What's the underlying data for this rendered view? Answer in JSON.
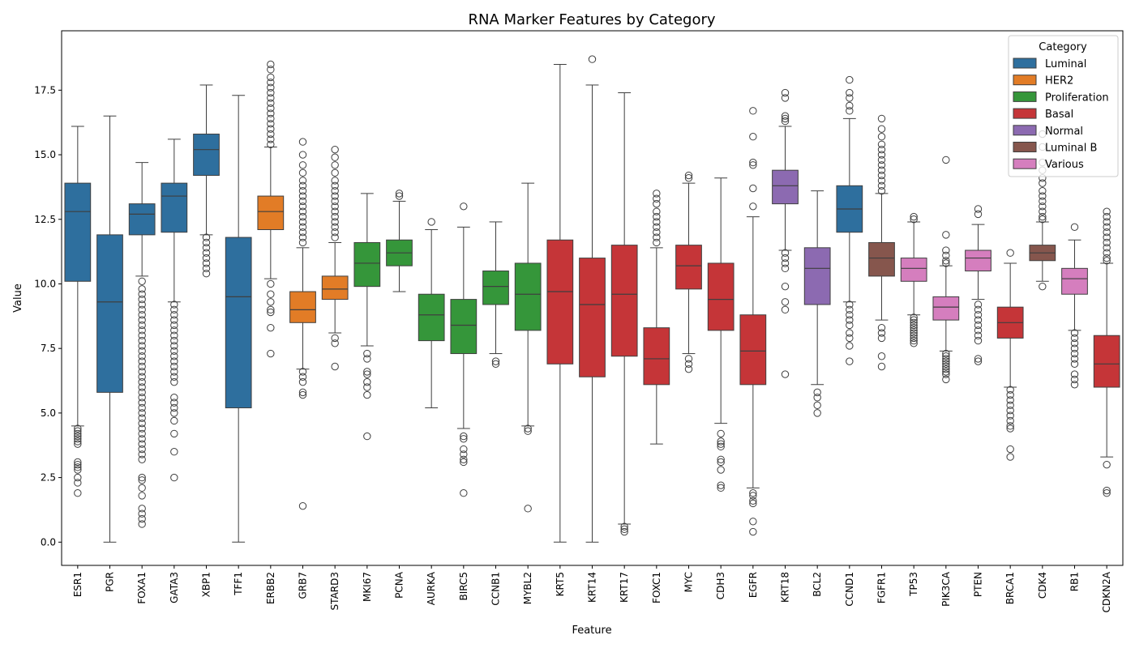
{
  "chart_data": {
    "type": "box",
    "title": "RNA Marker Features by Category",
    "xlabel": "Feature",
    "ylabel": "Value",
    "ylim": [
      -0.9,
      19.8
    ],
    "yticks": [
      "0.0",
      "2.5",
      "5.0",
      "7.5",
      "10.0",
      "12.5",
      "15.0",
      "17.5"
    ],
    "legend": {
      "title": "Category",
      "position": "top-right",
      "entries": [
        {
          "name": "Luminal",
          "color": "#2e6f9e"
        },
        {
          "name": "HER2",
          "color": "#e27c26"
        },
        {
          "name": "Proliferation",
          "color": "#35963a"
        },
        {
          "name": "Basal",
          "color": "#c53538"
        },
        {
          "name": "Normal",
          "color": "#8c6ab1"
        },
        {
          "name": "Luminal B",
          "color": "#86564d"
        },
        {
          "name": "Various",
          "color": "#d57ebe"
        }
      ]
    },
    "boxes": [
      {
        "feature": "ESR1",
        "category": "Luminal",
        "whislo": 4.5,
        "q1": 10.1,
        "med": 12.8,
        "q3": 13.9,
        "whishi": 16.1,
        "fliers": [
          4.4,
          4.3,
          4.2,
          4.1,
          4.0,
          3.9,
          3.8,
          3.1,
          3.0,
          2.9,
          2.8,
          2.5,
          2.3,
          1.9
        ]
      },
      {
        "feature": "PGR",
        "category": "Luminal",
        "whislo": 0.0,
        "q1": 5.8,
        "med": 9.3,
        "q3": 11.9,
        "whishi": 16.5,
        "fliers": []
      },
      {
        "feature": "FOXA1",
        "category": "Luminal",
        "whislo": 10.3,
        "q1": 11.9,
        "med": 12.7,
        "q3": 13.1,
        "whishi": 14.7,
        "fliers": [
          10.1,
          9.8,
          9.6,
          9.4,
          9.2,
          9.0,
          8.8,
          8.6,
          8.4,
          8.2,
          8.0,
          7.8,
          7.6,
          7.4,
          7.2,
          7.0,
          6.8,
          6.6,
          6.4,
          6.2,
          6.0,
          5.8,
          5.6,
          5.4,
          5.2,
          5.0,
          4.8,
          4.6,
          4.4,
          4.2,
          4.0,
          3.8,
          3.6,
          3.4,
          3.2,
          2.5,
          2.4,
          2.1,
          1.8,
          1.3,
          1.1,
          0.9,
          0.7
        ]
      },
      {
        "feature": "GATA3",
        "category": "Luminal",
        "whislo": 9.3,
        "q1": 12.0,
        "med": 13.4,
        "q3": 13.9,
        "whishi": 15.6,
        "fliers": [
          9.2,
          9.0,
          8.8,
          8.6,
          8.4,
          8.2,
          8.0,
          7.8,
          7.6,
          7.4,
          7.2,
          7.0,
          6.8,
          6.6,
          6.4,
          6.2,
          5.6,
          5.4,
          5.2,
          5.0,
          4.7,
          4.2,
          3.5,
          2.5
        ]
      },
      {
        "feature": "XBP1",
        "category": "Luminal",
        "whislo": 11.9,
        "q1": 14.2,
        "med": 15.2,
        "q3": 15.8,
        "whishi": 17.7,
        "fliers": [
          11.8,
          11.6,
          11.4,
          11.2,
          11.0,
          10.8,
          10.6,
          10.4
        ]
      },
      {
        "feature": "TFF1",
        "category": "Luminal",
        "whislo": 0.0,
        "q1": 5.2,
        "med": 9.5,
        "q3": 11.8,
        "whishi": 17.3,
        "fliers": []
      },
      {
        "feature": "ERBB2",
        "category": "HER2",
        "whislo": 10.2,
        "q1": 12.1,
        "med": 12.8,
        "q3": 13.4,
        "whishi": 15.3,
        "fliers": [
          18.5,
          18.3,
          18.0,
          17.8,
          17.6,
          17.4,
          17.2,
          17.0,
          16.8,
          16.6,
          16.4,
          16.2,
          16.0,
          15.8,
          15.6,
          15.4,
          10.0,
          9.6,
          9.3,
          9.0,
          8.9,
          8.3,
          7.3
        ]
      },
      {
        "feature": "GRB7",
        "category": "HER2",
        "whislo": 6.7,
        "q1": 8.5,
        "med": 9.0,
        "q3": 9.7,
        "whishi": 11.4,
        "fliers": [
          15.5,
          15.0,
          14.6,
          14.3,
          14.0,
          13.8,
          13.6,
          13.4,
          13.2,
          13.0,
          12.8,
          12.6,
          12.4,
          12.2,
          12.0,
          11.8,
          11.6,
          6.6,
          6.4,
          6.2,
          5.8,
          5.7,
          1.4
        ]
      },
      {
        "feature": "STARD3",
        "category": "HER2",
        "whislo": 8.1,
        "q1": 9.4,
        "med": 9.8,
        "q3": 10.3,
        "whishi": 11.6,
        "fliers": [
          15.2,
          14.9,
          14.6,
          14.3,
          14.0,
          13.8,
          13.6,
          13.4,
          13.2,
          13.0,
          12.8,
          12.6,
          12.4,
          12.2,
          12.0,
          11.8,
          7.9,
          7.7,
          6.8
        ]
      },
      {
        "feature": "MKI67",
        "category": "Proliferation",
        "whislo": 7.6,
        "q1": 9.9,
        "med": 10.8,
        "q3": 11.6,
        "whishi": 13.5,
        "fliers": [
          7.3,
          7.1,
          6.6,
          6.5,
          6.2,
          6.0,
          5.7,
          4.1
        ]
      },
      {
        "feature": "PCNA",
        "category": "Proliferation",
        "whislo": 9.7,
        "q1": 10.7,
        "med": 11.2,
        "q3": 11.7,
        "whishi": 13.2,
        "fliers": [
          13.5,
          13.4
        ]
      },
      {
        "feature": "AURKA",
        "category": "Proliferation",
        "whislo": 5.2,
        "q1": 7.8,
        "med": 8.8,
        "q3": 9.6,
        "whishi": 12.1,
        "fliers": [
          12.4
        ]
      },
      {
        "feature": "BIRC5",
        "category": "Proliferation",
        "whislo": 4.4,
        "q1": 7.3,
        "med": 8.4,
        "q3": 9.4,
        "whishi": 12.2,
        "fliers": [
          13.0,
          4.1,
          4.0,
          3.6,
          3.4,
          3.2,
          3.1,
          1.9
        ]
      },
      {
        "feature": "CCNB1",
        "category": "Proliferation",
        "whislo": 7.3,
        "q1": 9.2,
        "med": 9.9,
        "q3": 10.5,
        "whishi": 12.4,
        "fliers": [
          7.0,
          6.9
        ]
      },
      {
        "feature": "MYBL2",
        "category": "Proliferation",
        "whislo": 4.5,
        "q1": 8.2,
        "med": 9.6,
        "q3": 10.8,
        "whishi": 13.9,
        "fliers": [
          4.4,
          4.3,
          1.3
        ]
      },
      {
        "feature": "KRT5",
        "category": "Basal",
        "whislo": 0.0,
        "q1": 6.9,
        "med": 9.7,
        "q3": 11.7,
        "whishi": 18.5,
        "fliers": []
      },
      {
        "feature": "KRT14",
        "category": "Basal",
        "whislo": 0.0,
        "q1": 6.4,
        "med": 9.2,
        "q3": 11.0,
        "whishi": 17.7,
        "fliers": [
          18.7
        ]
      },
      {
        "feature": "KRT17",
        "category": "Basal",
        "whislo": 0.7,
        "q1": 7.2,
        "med": 9.6,
        "q3": 11.5,
        "whishi": 17.4,
        "fliers": [
          0.6,
          0.5,
          0.4
        ]
      },
      {
        "feature": "FOXC1",
        "category": "Basal",
        "whislo": 3.8,
        "q1": 6.1,
        "med": 7.1,
        "q3": 8.3,
        "whishi": 11.4,
        "fliers": [
          13.5,
          13.3,
          13.1,
          12.8,
          12.6,
          12.4,
          12.2,
          12.0,
          11.8,
          11.6
        ]
      },
      {
        "feature": "MYC",
        "category": "Basal",
        "whislo": 7.3,
        "q1": 9.8,
        "med": 10.7,
        "q3": 11.5,
        "whishi": 13.9,
        "fliers": [
          14.2,
          14.1,
          7.1,
          6.9,
          6.7
        ]
      },
      {
        "feature": "CDH3",
        "category": "Basal",
        "whislo": 4.6,
        "q1": 8.2,
        "med": 9.4,
        "q3": 10.8,
        "whishi": 14.1,
        "fliers": [
          4.2,
          3.9,
          3.8,
          3.7,
          3.2,
          3.1,
          2.8,
          2.2,
          2.1
        ]
      },
      {
        "feature": "EGFR",
        "category": "Basal",
        "whislo": 2.1,
        "q1": 6.1,
        "med": 7.4,
        "q3": 8.8,
        "whishi": 12.6,
        "fliers": [
          16.7,
          15.7,
          14.7,
          14.6,
          13.7,
          13.0,
          1.9,
          1.8,
          1.6,
          1.5,
          0.8,
          0.4
        ]
      },
      {
        "feature": "KRT18",
        "category": "Normal",
        "whislo": 11.3,
        "q1": 13.1,
        "med": 13.8,
        "q3": 14.4,
        "whishi": 16.1,
        "fliers": [
          17.4,
          17.2,
          16.5,
          16.4,
          16.3,
          11.2,
          11.0,
          10.8,
          10.6,
          9.9,
          9.3,
          9.0,
          6.5
        ]
      },
      {
        "feature": "BCL2",
        "category": "Normal",
        "whislo": 6.1,
        "q1": 9.2,
        "med": 10.6,
        "q3": 11.4,
        "whishi": 13.6,
        "fliers": [
          5.8,
          5.6,
          5.3,
          5.0
        ]
      },
      {
        "feature": "CCND1",
        "category": "Luminal",
        "whislo": 9.3,
        "q1": 12.0,
        "med": 12.9,
        "q3": 13.8,
        "whishi": 16.4,
        "fliers": [
          17.9,
          17.4,
          17.2,
          16.9,
          16.7,
          9.2,
          9.0,
          8.8,
          8.6,
          8.4,
          8.1,
          7.9,
          7.6,
          7.0
        ]
      },
      {
        "feature": "FGFR1",
        "category": "Luminal B",
        "whislo": 8.6,
        "q1": 10.3,
        "med": 11.0,
        "q3": 11.6,
        "whishi": 13.5,
        "fliers": [
          16.4,
          16.0,
          15.7,
          15.4,
          15.2,
          15.0,
          14.8,
          14.6,
          14.4,
          14.2,
          14.0,
          13.8,
          13.6,
          8.3,
          8.1,
          7.9,
          7.2,
          6.8
        ]
      },
      {
        "feature": "TP53",
        "category": "Various",
        "whislo": 8.8,
        "q1": 10.1,
        "med": 10.6,
        "q3": 11.0,
        "whishi": 12.4,
        "fliers": [
          12.6,
          12.5,
          8.7,
          8.6,
          8.5,
          8.4,
          8.3,
          8.2,
          8.1,
          8.0,
          7.9,
          7.8,
          7.7
        ]
      },
      {
        "feature": "PIK3CA",
        "category": "Various",
        "whislo": 7.4,
        "q1": 8.6,
        "med": 9.1,
        "q3": 9.5,
        "whishi": 10.7,
        "fliers": [
          14.8,
          11.9,
          11.3,
          11.1,
          10.9,
          10.8,
          7.3,
          7.2,
          7.1,
          7.0,
          6.9,
          6.8,
          6.7,
          6.6,
          6.5,
          6.3
        ]
      },
      {
        "feature": "PTEN",
        "category": "Various",
        "whislo": 9.4,
        "q1": 10.5,
        "med": 11.0,
        "q3": 11.3,
        "whishi": 12.3,
        "fliers": [
          12.9,
          12.7,
          9.2,
          9.0,
          8.8,
          8.6,
          8.4,
          8.2,
          8.0,
          7.8,
          7.1,
          7.0
        ]
      },
      {
        "feature": "BRCA1",
        "category": "Basal",
        "whislo": 6.0,
        "q1": 7.9,
        "med": 8.5,
        "q3": 9.1,
        "whishi": 10.8,
        "fliers": [
          11.2,
          5.9,
          5.7,
          5.5,
          5.3,
          5.1,
          4.9,
          4.7,
          4.5,
          4.4,
          3.6,
          3.3
        ]
      },
      {
        "feature": "CDK4",
        "category": "Luminal B",
        "whislo": 10.1,
        "q1": 10.9,
        "med": 11.2,
        "q3": 11.5,
        "whishi": 12.4,
        "fliers": [
          15.8,
          15.3,
          14.7,
          14.4,
          14.1,
          13.9,
          13.6,
          13.4,
          13.2,
          13.0,
          12.8,
          12.6,
          12.5,
          9.9
        ]
      },
      {
        "feature": "RB1",
        "category": "Various",
        "whislo": 8.2,
        "q1": 9.6,
        "med": 10.2,
        "q3": 10.6,
        "whishi": 11.7,
        "fliers": [
          12.2,
          8.1,
          7.9,
          7.7,
          7.5,
          7.3,
          7.1,
          6.9,
          6.5,
          6.3,
          6.1
        ]
      },
      {
        "feature": "CDKN2A",
        "category": "Basal",
        "whislo": 3.3,
        "q1": 6.0,
        "med": 6.9,
        "q3": 8.0,
        "whishi": 10.8,
        "fliers": [
          12.8,
          12.6,
          12.4,
          12.2,
          12.0,
          11.8,
          11.6,
          11.4,
          11.2,
          11.0,
          10.9,
          3.0,
          2.0,
          1.9
        ]
      }
    ]
  }
}
